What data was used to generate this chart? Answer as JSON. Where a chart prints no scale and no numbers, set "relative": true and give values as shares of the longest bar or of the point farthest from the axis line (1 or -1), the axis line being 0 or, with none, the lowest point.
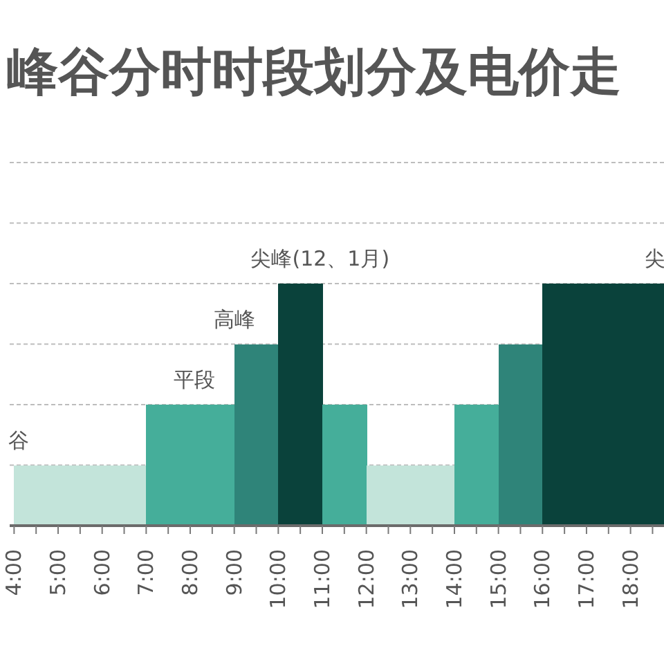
{
  "chart_data": {
    "type": "bar",
    "title": "峰谷分时时段划分及电价走",
    "x": [
      4.5,
      5.5,
      6.5,
      7.5,
      8.5,
      9.5,
      10.5,
      11.5,
      12.5,
      13.5,
      14.5,
      15.5,
      16.5,
      17.5,
      18.5
    ],
    "values": [
      0.25,
      0.25,
      0.25,
      0.5,
      0.5,
      0.75,
      1,
      0.5,
      0.25,
      0.25,
      0.5,
      0.75,
      1,
      1,
      1
    ],
    "colors": [
      "#c3e4da",
      "#c3e4da",
      "#c3e4da",
      "#45ae9a",
      "#45ae9a",
      "#2f8479",
      "#0a423b",
      "#45ae9a",
      "#c3e4da",
      "#c3e4da",
      "#45ae9a",
      "#2f8479",
      "#0a423b",
      "#0a423b",
      "#0a423b"
    ],
    "relative": true,
    "xlim": [
      3.9,
      18.76
    ],
    "xticks": [
      {
        "value": 4,
        "label": "4:00"
      },
      {
        "value": 4.5,
        "label": null
      },
      {
        "value": 5,
        "label": "5:00"
      },
      {
        "value": 5.5,
        "label": null
      },
      {
        "value": 6,
        "label": "6:00"
      },
      {
        "value": 6.5,
        "label": null
      },
      {
        "value": 7,
        "label": "7:00"
      },
      {
        "value": 7.5,
        "label": null
      },
      {
        "value": 8,
        "label": "8:00"
      },
      {
        "value": 8.5,
        "label": null
      },
      {
        "value": 9,
        "label": "9:00"
      },
      {
        "value": 9.5,
        "label": null
      },
      {
        "value": 10,
        "label": "10:00"
      },
      {
        "value": 10.5,
        "label": null
      },
      {
        "value": 11,
        "label": "11:00"
      },
      {
        "value": 11.5,
        "label": null
      },
      {
        "value": 12,
        "label": "12:00"
      },
      {
        "value": 12.5,
        "label": null
      },
      {
        "value": 13,
        "label": "13:00"
      },
      {
        "value": 13.5,
        "label": null
      },
      {
        "value": 14,
        "label": "14:00"
      },
      {
        "value": 14.5,
        "label": null
      },
      {
        "value": 15,
        "label": "15:00"
      },
      {
        "value": 15.5,
        "label": null
      },
      {
        "value": 16,
        "label": "16:00"
      },
      {
        "value": 16.5,
        "label": null
      },
      {
        "value": 17,
        "label": "17:00"
      },
      {
        "value": 17.5,
        "label": null
      },
      {
        "value": 18,
        "label": "18:00"
      },
      {
        "value": 18.5,
        "label": null
      }
    ],
    "grid": "y",
    "annotations": [
      {
        "text": "谷",
        "x": 4.1,
        "y": 0.25
      },
      {
        "text": "平段",
        "x": 8.1,
        "y": 0.5
      },
      {
        "text": "高峰",
        "x": 9.0,
        "y": 0.75
      },
      {
        "text": "尖峰(12、1月)",
        "x": 10.95,
        "y": 1
      },
      {
        "text": "尖",
        "x": 18.55,
        "y": 1
      }
    ]
  }
}
